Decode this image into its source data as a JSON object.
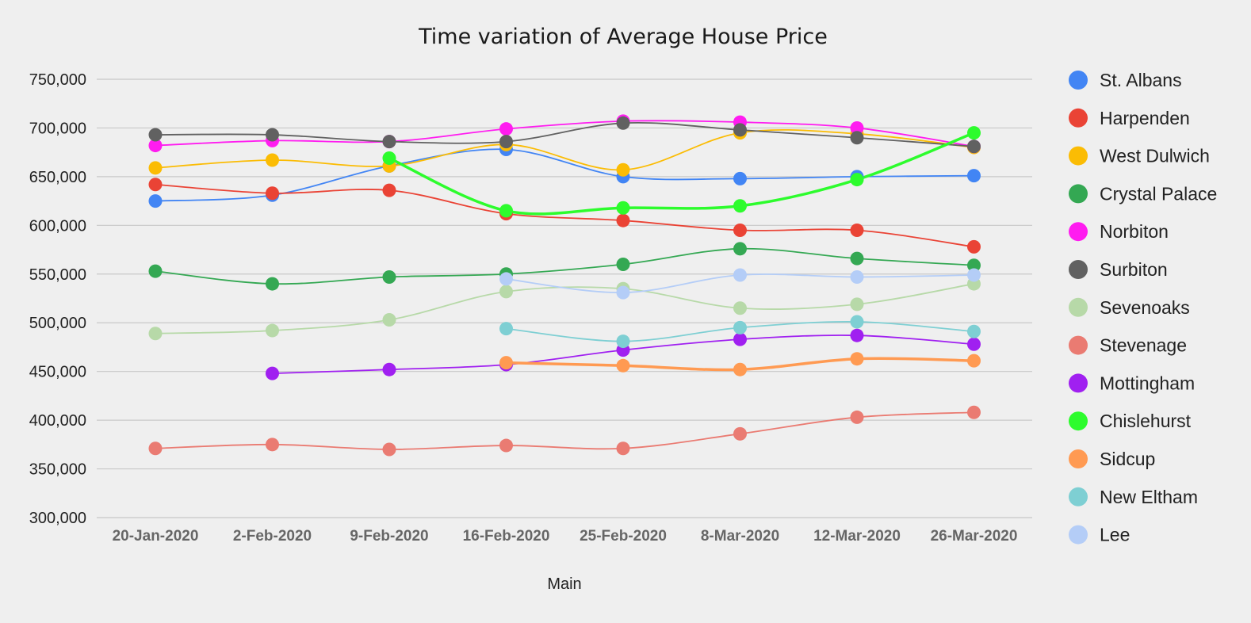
{
  "chart_data": {
    "type": "line",
    "title": "Time variation of Average House Price",
    "xlabel": "Main",
    "ylabel": "",
    "ylim": [
      300000,
      750000
    ],
    "yticks": [
      300000,
      350000,
      400000,
      450000,
      500000,
      550000,
      600000,
      650000,
      700000,
      750000
    ],
    "ytick_labels": [
      "300,000",
      "350,000",
      "400,000",
      "450,000",
      "500,000",
      "550,000",
      "600,000",
      "650,000",
      "700,000",
      "750,000"
    ],
    "categories": [
      "20-Jan-2020",
      "2-Feb-2020",
      "9-Feb-2020",
      "16-Feb-2020",
      "25-Feb-2020",
      "8-Mar-2020",
      "12-Mar-2020",
      "26-Mar-2020"
    ],
    "grid": true,
    "legend_position": "right",
    "series": [
      {
        "name": "St. Albans",
        "color": "#4285f4",
        "values": [
          625000,
          631000,
          661000,
          678000,
          650000,
          648000,
          650000,
          651000
        ]
      },
      {
        "name": "Harpenden",
        "color": "#ea4335",
        "values": [
          642000,
          633000,
          636000,
          612000,
          605000,
          595000,
          595000,
          578000
        ]
      },
      {
        "name": "West Dulwich",
        "color": "#fbbc04",
        "values": [
          659000,
          667000,
          661000,
          683000,
          657000,
          695000,
          694000,
          680000
        ]
      },
      {
        "name": "Crystal Palace",
        "color": "#34a853",
        "values": [
          553000,
          540000,
          547000,
          550000,
          560000,
          576000,
          566000,
          559000
        ]
      },
      {
        "name": "Norbiton",
        "color": "#ff1cf0",
        "values": [
          682000,
          687000,
          686000,
          699000,
          707000,
          706000,
          700000,
          681000
        ]
      },
      {
        "name": "Surbiton",
        "color": "#616161",
        "values": [
          693000,
          693000,
          686000,
          686000,
          705000,
          698000,
          690000,
          681000
        ]
      },
      {
        "name": "Sevenoaks",
        "color": "#b7d9a8",
        "values": [
          489000,
          492000,
          503000,
          532000,
          535000,
          515000,
          519000,
          540000
        ]
      },
      {
        "name": "Stevenage",
        "color": "#ea7b72",
        "values": [
          371000,
          375000,
          370000,
          374000,
          371000,
          386000,
          403000,
          408000
        ]
      },
      {
        "name": "Mottingham",
        "color": "#a020f0",
        "values": [
          null,
          448000,
          452000,
          457000,
          472000,
          483000,
          487000,
          478000
        ]
      },
      {
        "name": "Chislehurst",
        "color": "#2dfc2d",
        "values": [
          null,
          null,
          669000,
          615000,
          618000,
          620000,
          647000,
          695000
        ]
      },
      {
        "name": "Sidcup",
        "color": "#ff9a52",
        "values": [
          null,
          null,
          null,
          459000,
          456000,
          452000,
          463000,
          461000
        ]
      },
      {
        "name": "New Eltham",
        "color": "#7ecfd3",
        "values": [
          null,
          null,
          null,
          494000,
          481000,
          495000,
          501000,
          491000
        ]
      },
      {
        "name": "Lee",
        "color": "#b4cdf7",
        "values": [
          null,
          null,
          null,
          545000,
          531000,
          549000,
          547000,
          549000
        ]
      }
    ]
  }
}
